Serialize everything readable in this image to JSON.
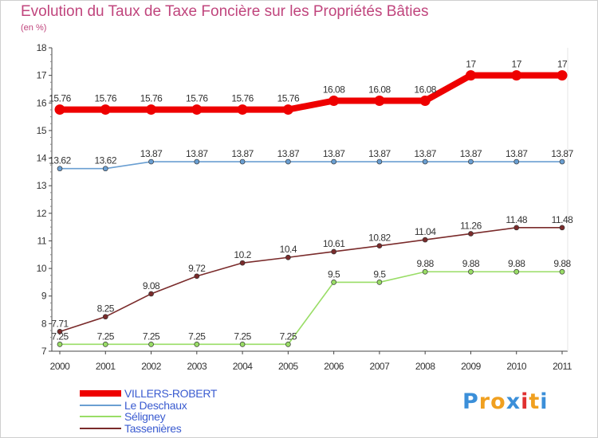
{
  "header": {
    "title": "Evolution du Taux de Taxe Foncière sur les Propriétés Bâties",
    "unit": "(en %)"
  },
  "chart_data": {
    "type": "line",
    "title": "Evolution du Taux de Taxe Foncière sur les Propriétés Bâties",
    "ylabel": "(en %)",
    "xlabel": "",
    "x": [
      "2000",
      "2001",
      "2002",
      "2003",
      "2004",
      "2005",
      "2006",
      "2007",
      "2008",
      "2009",
      "2010",
      "2011"
    ],
    "ylim": [
      7,
      18
    ],
    "yticks": [
      "7",
      "8",
      "9",
      "10",
      "11",
      "12",
      "13",
      "14",
      "15",
      "16",
      "17",
      "18"
    ],
    "grid": false,
    "legend_position": "bottom-left",
    "series": [
      {
        "name": "VILLERS-ROBERT",
        "color": "#ee0000",
        "values": [
          15.76,
          15.76,
          15.76,
          15.76,
          15.76,
          15.76,
          16.08,
          16.08,
          16.08,
          17,
          17,
          17
        ],
        "labels": [
          "15.76",
          "15.76",
          "15.76",
          "15.76",
          "15.76",
          "15.76",
          "16.08",
          "16.08",
          "16.08",
          "17",
          "17",
          "17"
        ]
      },
      {
        "name": "Le Deschaux",
        "color": "#6a9fd2",
        "values": [
          13.62,
          13.62,
          13.87,
          13.87,
          13.87,
          13.87,
          13.87,
          13.87,
          13.87,
          13.87,
          13.87,
          13.87
        ],
        "labels": [
          "13.62",
          "13.62",
          "13.87",
          "13.87",
          "13.87",
          "13.87",
          "13.87",
          "13.87",
          "13.87",
          "13.87",
          "13.87",
          "13.87"
        ]
      },
      {
        "name": "Séligney",
        "color": "#99dd66",
        "values": [
          7.25,
          7.25,
          7.25,
          7.25,
          7.25,
          7.25,
          9.5,
          9.5,
          9.88,
          9.88,
          9.88,
          9.88
        ],
        "labels": [
          "7.25",
          "7.25",
          "7.25",
          "7.25",
          "7.25",
          "7.25",
          "9.5",
          "9.5",
          "9.88",
          "9.88",
          "9.88",
          "9.88"
        ]
      },
      {
        "name": "Tassenières",
        "color": "#7a2b2b",
        "values": [
          7.71,
          8.25,
          9.08,
          9.72,
          10.2,
          10.4,
          10.61,
          10.82,
          11.04,
          11.26,
          11.48,
          11.48
        ],
        "labels": [
          "7.71",
          "8.25",
          "9.08",
          "9.72",
          "10.2",
          "10.4",
          "10.61",
          "10.82",
          "11.04",
          "11.26",
          "11.48",
          "11.48"
        ]
      }
    ]
  },
  "legend": [
    {
      "label": "VILLERS-ROBERT",
      "color": "#ee0000"
    },
    {
      "label": "Le Deschaux",
      "color": "#6a9fd2"
    },
    {
      "label": "Séligney",
      "color": "#99dd66"
    },
    {
      "label": "Tassenières",
      "color": "#7a2b2b"
    }
  ],
  "logo": {
    "letters": [
      "P",
      "r",
      "o",
      "x",
      "i",
      "t",
      "i"
    ],
    "colors": [
      "#3b8fd9",
      "#f0a020",
      "#f0a020",
      "#3b8fd9",
      "#e03030",
      "#f0a020",
      "#3b8fd9"
    ]
  }
}
